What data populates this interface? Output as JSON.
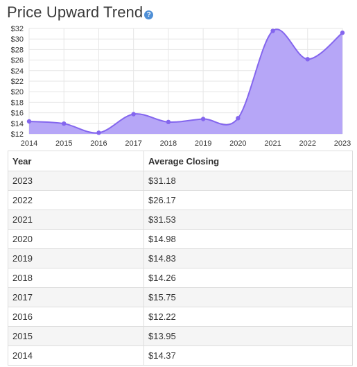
{
  "title": "Price Upward Trend",
  "help_icon": "?",
  "colors": {
    "area_fill": "#b6a6f7",
    "line": "#8466ee",
    "grid": "#e6e6e6",
    "help_icon": "#4f8fd6"
  },
  "chart_data": {
    "type": "area",
    "x": [
      "2014",
      "2015",
      "2016",
      "2017",
      "2018",
      "2019",
      "2020",
      "2021",
      "2022",
      "2023"
    ],
    "series": [
      {
        "values": [
          14.37,
          13.95,
          12.22,
          15.75,
          14.26,
          14.83,
          14.98,
          31.53,
          26.17,
          31.18
        ]
      }
    ],
    "ylim": [
      12,
      32
    ],
    "yticks": [
      12,
      14,
      16,
      18,
      20,
      22,
      24,
      26,
      28,
      30,
      32
    ],
    "ytick_labels": [
      "$12",
      "$14",
      "$16",
      "$18",
      "$20",
      "$22",
      "$24",
      "$26",
      "$28",
      "$30",
      "$32"
    ],
    "grid": true,
    "smooth": true
  },
  "table": {
    "headers": [
      "Year",
      "Average Closing"
    ],
    "rows": [
      [
        "2023",
        "$31.18"
      ],
      [
        "2022",
        "$26.17"
      ],
      [
        "2021",
        "$31.53"
      ],
      [
        "2020",
        "$14.98"
      ],
      [
        "2019",
        "$14.83"
      ],
      [
        "2018",
        "$14.26"
      ],
      [
        "2017",
        "$15.75"
      ],
      [
        "2016",
        "$12.22"
      ],
      [
        "2015",
        "$13.95"
      ],
      [
        "2014",
        "$14.37"
      ]
    ]
  }
}
